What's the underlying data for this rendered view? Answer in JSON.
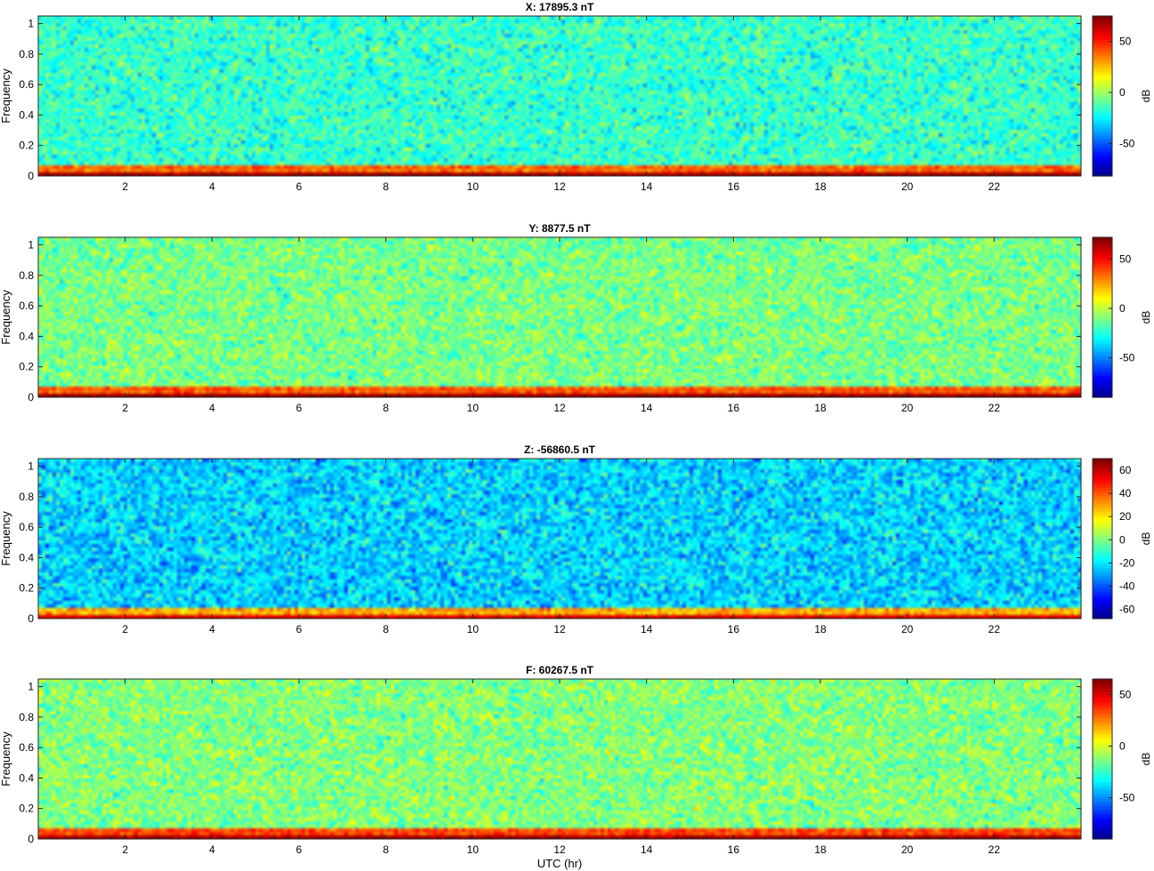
{
  "chart_data": [
    {
      "type": "heatmap",
      "title": "X: 17895.3 nT",
      "xlabel": "",
      "ylabel": "Frequency",
      "x_ticks": [
        2,
        4,
        6,
        8,
        10,
        12,
        14,
        16,
        18,
        20,
        22
      ],
      "y_ticks": [
        0,
        0.2,
        0.4,
        0.6,
        0.8,
        1
      ],
      "xlim": [
        0,
        24
      ],
      "ylim": [
        0,
        1.05
      ],
      "colorbar": {
        "label": "dB",
        "ticks": [
          50,
          0,
          -50
        ],
        "range": [
          -82,
          75
        ]
      },
      "colormap": "jet",
      "level_profile": {
        "background_db": -15,
        "low_freq_band_db": 40,
        "dc_row_db": 70
      }
    },
    {
      "type": "heatmap",
      "title": "Y: 8877.5 nT",
      "xlabel": "",
      "ylabel": "Frequency",
      "x_ticks": [
        2,
        4,
        6,
        8,
        10,
        12,
        14,
        16,
        18,
        20,
        22
      ],
      "y_ticks": [
        0,
        0.2,
        0.4,
        0.6,
        0.8,
        1
      ],
      "xlim": [
        0,
        24
      ],
      "ylim": [
        0,
        1.05
      ],
      "colorbar": {
        "label": "dB",
        "ticks": [
          50,
          0,
          -50
        ],
        "range": [
          -90,
          72
        ]
      },
      "colormap": "jet",
      "level_profile": {
        "background_db": -10,
        "low_freq_band_db": 38,
        "dc_row_db": 68
      }
    },
    {
      "type": "heatmap",
      "title": "Z: -56860.5 nT",
      "xlabel": "",
      "ylabel": "Frequency",
      "x_ticks": [
        2,
        4,
        6,
        8,
        10,
        12,
        14,
        16,
        18,
        20,
        22
      ],
      "y_ticks": [
        0,
        0.2,
        0.4,
        0.6,
        0.8,
        1
      ],
      "xlim": [
        0,
        24
      ],
      "ylim": [
        0,
        1.05
      ],
      "colorbar": {
        "label": "dB",
        "ticks": [
          60,
          40,
          20,
          0,
          -20,
          -40,
          -60
        ],
        "range": [
          -68,
          70
        ]
      },
      "colormap": "jet",
      "level_profile": {
        "background_db": -22,
        "low_freq_band_db": 30,
        "dc_row_db": 58
      }
    },
    {
      "type": "heatmap",
      "title": "F: 60267.5 nT",
      "xlabel": "UTC (hr)",
      "ylabel": "Frequency",
      "x_ticks": [
        2,
        4,
        6,
        8,
        10,
        12,
        14,
        16,
        18,
        20,
        22
      ],
      "y_ticks": [
        0,
        0.2,
        0.4,
        0.6,
        0.8,
        1
      ],
      "xlim": [
        0,
        24
      ],
      "ylim": [
        0,
        1.05
      ],
      "colorbar": {
        "label": "dB",
        "ticks": [
          50,
          0,
          -50
        ],
        "range": [
          -90,
          65
        ]
      },
      "colormap": "jet",
      "level_profile": {
        "background_db": -12,
        "low_freq_band_db": 35,
        "dc_row_db": 60
      }
    }
  ]
}
